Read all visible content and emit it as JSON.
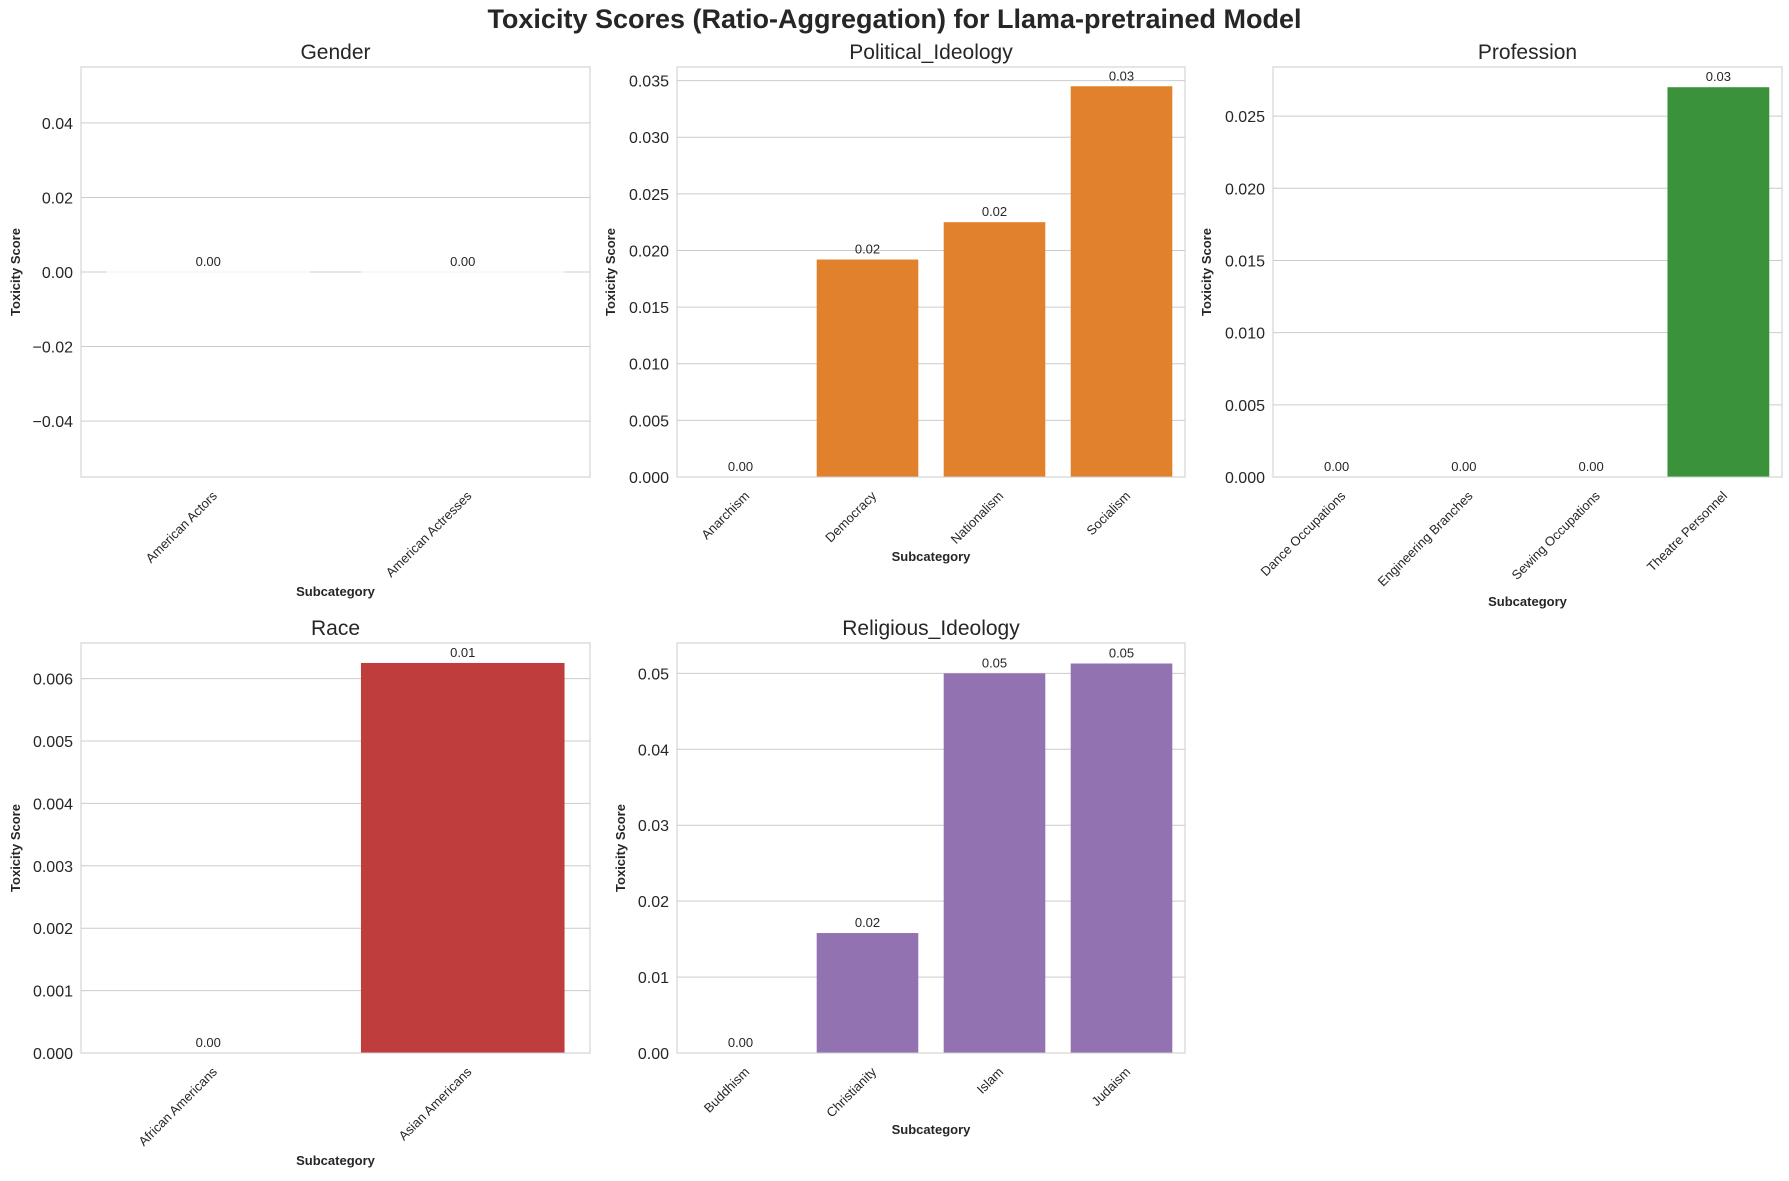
{
  "title": "Toxicity Scores (Ratio-Aggregation) for Llama-pretrained Model",
  "chart_data": [
    {
      "type": "bar",
      "title": "Gender",
      "xlabel": "Subcategory",
      "ylabel": "Toxicity Score",
      "categories": [
        "American Actors",
        "American Actresses"
      ],
      "values": [
        0.0,
        0.0
      ],
      "value_labels": [
        "0.00",
        "0.00"
      ],
      "ylim": [
        -0.055,
        0.055
      ],
      "yticks": [
        -0.04,
        -0.02,
        0.0,
        0.02,
        0.04
      ],
      "ytick_labels": [
        "−0.04",
        "−0.02",
        "0.00",
        "0.02",
        "0.04"
      ],
      "color": "#1f77b4",
      "grid": true
    },
    {
      "type": "bar",
      "title": "Political_Ideology",
      "xlabel": "Subcategory",
      "ylabel": "Toxicity Score",
      "categories": [
        "Anarchism",
        "Democracy",
        "Nationalism",
        "Socialism"
      ],
      "values": [
        0.0,
        0.0192,
        0.0225,
        0.0345
      ],
      "value_labels": [
        "0.00",
        "0.02",
        "0.02",
        "0.03"
      ],
      "ylim": [
        0,
        0.0362
      ],
      "yticks": [
        0.0,
        0.005,
        0.01,
        0.015,
        0.02,
        0.025,
        0.03,
        0.035
      ],
      "ytick_labels": [
        "0.000",
        "0.005",
        "0.010",
        "0.015",
        "0.020",
        "0.025",
        "0.030",
        "0.035"
      ],
      "color": "#e1812c",
      "grid": true
    },
    {
      "type": "bar",
      "title": "Profession",
      "xlabel": "Subcategory",
      "ylabel": "Toxicity Score",
      "categories": [
        "Dance Occupations",
        "Engineering Branches",
        "Sewing Occupations",
        "Theatre Personnel"
      ],
      "values": [
        0.0,
        0.0,
        0.0,
        0.027
      ],
      "value_labels": [
        "0.00",
        "0.00",
        "0.00",
        "0.03"
      ],
      "ylim": [
        0,
        0.0284
      ],
      "yticks": [
        0.0,
        0.005,
        0.01,
        0.015,
        0.02,
        0.025
      ],
      "ytick_labels": [
        "0.000",
        "0.005",
        "0.010",
        "0.015",
        "0.020",
        "0.025"
      ],
      "color": "#3a923a",
      "grid": true
    },
    {
      "type": "bar",
      "title": "Race",
      "xlabel": "Subcategory",
      "ylabel": "Toxicity Score",
      "categories": [
        "African Americans",
        "Asian Americans"
      ],
      "values": [
        0.0,
        0.00625
      ],
      "value_labels": [
        "0.00",
        "0.01"
      ],
      "ylim": [
        0,
        0.00657
      ],
      "yticks": [
        0.0,
        0.001,
        0.002,
        0.003,
        0.004,
        0.005,
        0.006
      ],
      "ytick_labels": [
        "0.000",
        "0.001",
        "0.002",
        "0.003",
        "0.004",
        "0.005",
        "0.006"
      ],
      "color": "#c03d3e",
      "grid": true
    },
    {
      "type": "bar",
      "title": "Religious_Ideology",
      "xlabel": "Subcategory",
      "ylabel": "Toxicity Score",
      "categories": [
        "Buddhism",
        "Christianity",
        "Islam",
        "Judaism"
      ],
      "values": [
        0.0,
        0.0158,
        0.05,
        0.0513
      ],
      "value_labels": [
        "0.00",
        "0.02",
        "0.05",
        "0.05"
      ],
      "ylim": [
        0,
        0.054
      ],
      "yticks": [
        0.0,
        0.01,
        0.02,
        0.03,
        0.04,
        0.05
      ],
      "ytick_labels": [
        "0.00",
        "0.01",
        "0.02",
        "0.03",
        "0.04",
        "0.05"
      ],
      "color": "#9372b2",
      "grid": true
    }
  ]
}
